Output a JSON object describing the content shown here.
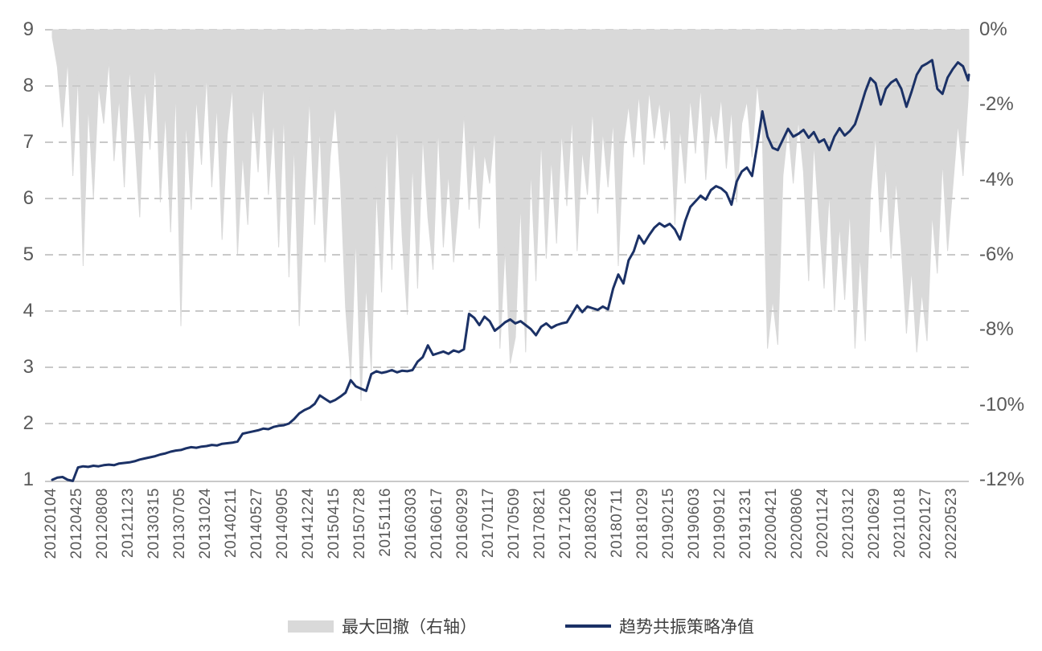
{
  "chart_data": {
    "type": "combo",
    "title": "",
    "legend_position": "bottom-center",
    "grid": "horizontal-dashed",
    "x_tick_labels": [
      "20120104",
      "20120425",
      "20120808",
      "20121123",
      "20130315",
      "20130705",
      "20131024",
      "20140211",
      "20140527",
      "20140905",
      "20141224",
      "20150415",
      "20150728",
      "20151116",
      "20160303",
      "20160617",
      "20160929",
      "20170117",
      "20170509",
      "20170821",
      "20171206",
      "20180326",
      "20180711",
      "20181029",
      "20190215",
      "20190603",
      "20190912",
      "20191231",
      "20200421",
      "20200806",
      "20201124",
      "20210312",
      "20210629",
      "20211018",
      "20220127",
      "20220523"
    ],
    "x_points_per_interval": 5,
    "left_axis": {
      "tick_labels": [
        "9",
        "8",
        "7",
        "6",
        "5",
        "4",
        "3",
        "2",
        "1"
      ],
      "min": 1,
      "max": 9
    },
    "right_axis": {
      "tick_labels": [
        "0%",
        "-2%",
        "-4%",
        "-6%",
        "-8%",
        "-10%",
        "-12%"
      ],
      "min": -12,
      "max": 0,
      "unit": "%"
    },
    "series": [
      {
        "name": "最大回撤（右轴）",
        "type": "area",
        "axis": "right",
        "color": "#d9d9d9",
        "unit": "%",
        "values": [
          -0.2,
          -1.0,
          -2.6,
          -0.8,
          -3.9,
          -1.2,
          -6.3,
          -2.0,
          -4.5,
          -1.5,
          -2.5,
          -0.8,
          -3.5,
          -1.8,
          -4.2,
          -1.0,
          -2.8,
          -5.0,
          -1.5,
          -3.2,
          -0.9,
          -4.6,
          -2.2,
          -5.4,
          -1.6,
          -7.9,
          -2.4,
          -4.8,
          -1.8,
          -3.6,
          -1.2,
          -4.2,
          -2.0,
          -5.6,
          -2.8,
          -1.5,
          -6.0,
          -3.3,
          -5.2,
          -2.0,
          -3.8,
          -1.4,
          -4.4,
          -2.4,
          -5.8,
          -2.2,
          -6.6,
          -3.0,
          -7.9,
          -4.5,
          -1.8,
          -5.2,
          -2.6,
          -6.2,
          -3.4,
          -2.0,
          -4.0,
          -7.4,
          -9.3,
          -5.5,
          -9.9,
          -6.8,
          -9.1,
          -4.2,
          -7.0,
          -3.0,
          -6.4,
          -2.5,
          -5.5,
          -7.6,
          -3.5,
          -6.9,
          -2.8,
          -5.0,
          -6.4,
          -2.6,
          -5.8,
          -3.8,
          -6.2,
          -4.6,
          -2.2,
          -4.8,
          -2.9,
          -5.3,
          -3.3,
          -4.1,
          -2.6,
          -8.5,
          -5.8,
          -8.9,
          -8.2,
          -4.6,
          -8.6,
          -3.7,
          -6.7,
          -2.9,
          -6.1,
          -3.4,
          -5.7,
          -2.7,
          -4.7,
          -2.3,
          -5.9,
          -3.2,
          -4.4,
          -2.1,
          -4.9,
          -2.7,
          -4.2,
          -2.4,
          -6.3,
          -3.1,
          -2.0,
          -3.4,
          -1.7,
          -3.6,
          -1.6,
          -2.9,
          -1.9,
          -3.2,
          -2.0,
          -5.2,
          -2.6,
          -4.1,
          -1.8,
          -3.3,
          -1.5,
          -4.0,
          -2.2,
          -3.0,
          -1.8,
          -3.7,
          -2.1,
          -4.6,
          -2.5,
          -1.9,
          -3.4,
          -1.4,
          -2.8,
          -8.5,
          -7.2,
          -8.4,
          -3.9,
          -2.6,
          -4.1,
          -2.4,
          -3.8,
          -6.7,
          -3.0,
          -5.0,
          -6.9,
          -4.3,
          -7.5,
          -5.2,
          -7.2,
          -4.8,
          -8.5,
          -6.0,
          -8.3,
          -4.4,
          -2.8,
          -5.4,
          -3.6,
          -6.1,
          -4.0,
          -5.8,
          -8.1,
          -6.4,
          -8.6,
          -7.0,
          -8.3,
          -4.9,
          -6.5,
          -3.5,
          -5.9,
          -4.2,
          -2.5,
          -3.9,
          -1.8,
          -1.1
        ]
      },
      {
        "name": "趋势共振策略净值",
        "type": "line",
        "axis": "left",
        "color": "#1b3166",
        "values": [
          1.0,
          1.04,
          1.05,
          1.0,
          0.98,
          1.22,
          1.24,
          1.23,
          1.25,
          1.24,
          1.26,
          1.27,
          1.26,
          1.29,
          1.3,
          1.31,
          1.33,
          1.36,
          1.38,
          1.4,
          1.42,
          1.45,
          1.47,
          1.5,
          1.52,
          1.53,
          1.56,
          1.58,
          1.57,
          1.59,
          1.6,
          1.62,
          1.61,
          1.64,
          1.65,
          1.66,
          1.68,
          1.82,
          1.84,
          1.86,
          1.88,
          1.91,
          1.9,
          1.94,
          1.96,
          1.97,
          2.0,
          2.08,
          2.18,
          2.24,
          2.28,
          2.35,
          2.5,
          2.44,
          2.38,
          2.42,
          2.48,
          2.55,
          2.77,
          2.66,
          2.62,
          2.58,
          2.88,
          2.93,
          2.9,
          2.92,
          2.95,
          2.91,
          2.94,
          2.93,
          2.95,
          3.1,
          3.18,
          3.39,
          3.22,
          3.25,
          3.28,
          3.24,
          3.3,
          3.27,
          3.32,
          3.95,
          3.88,
          3.75,
          3.9,
          3.82,
          3.65,
          3.72,
          3.8,
          3.85,
          3.78,
          3.82,
          3.75,
          3.68,
          3.57,
          3.72,
          3.78,
          3.7,
          3.75,
          3.78,
          3.8,
          3.95,
          4.1,
          3.98,
          4.08,
          4.05,
          4.02,
          4.08,
          4.03,
          4.4,
          4.65,
          4.49,
          4.9,
          5.06,
          5.34,
          5.2,
          5.35,
          5.48,
          5.56,
          5.5,
          5.55,
          5.45,
          5.27,
          5.6,
          5.85,
          5.95,
          6.05,
          5.98,
          6.15,
          6.22,
          6.18,
          6.1,
          5.89,
          6.3,
          6.48,
          6.55,
          6.4,
          6.95,
          7.55,
          7.1,
          6.9,
          6.86,
          7.05,
          7.24,
          7.1,
          7.15,
          7.22,
          7.08,
          7.18,
          7.0,
          7.05,
          6.86,
          7.1,
          7.25,
          7.12,
          7.2,
          7.32,
          7.6,
          7.9,
          8.14,
          8.05,
          7.67,
          7.95,
          8.06,
          8.12,
          7.95,
          7.63,
          7.9,
          8.2,
          8.35,
          8.4,
          8.46,
          7.95,
          7.86,
          8.15,
          8.3,
          8.42,
          8.35,
          8.1,
          8.2
        ]
      }
    ]
  },
  "legend": {
    "drawdown_label": "最大回撤（右轴）",
    "netvalue_label": "趋势共振策略净值"
  },
  "colors": {
    "drawdown_fill": "#d9d9d9",
    "netvalue_line": "#1b3166",
    "gridline": "#c9c9c9",
    "baseline": "#c9c9c9",
    "axis_text": "#595959",
    "legend_text": "#404040",
    "background": "#ffffff"
  }
}
